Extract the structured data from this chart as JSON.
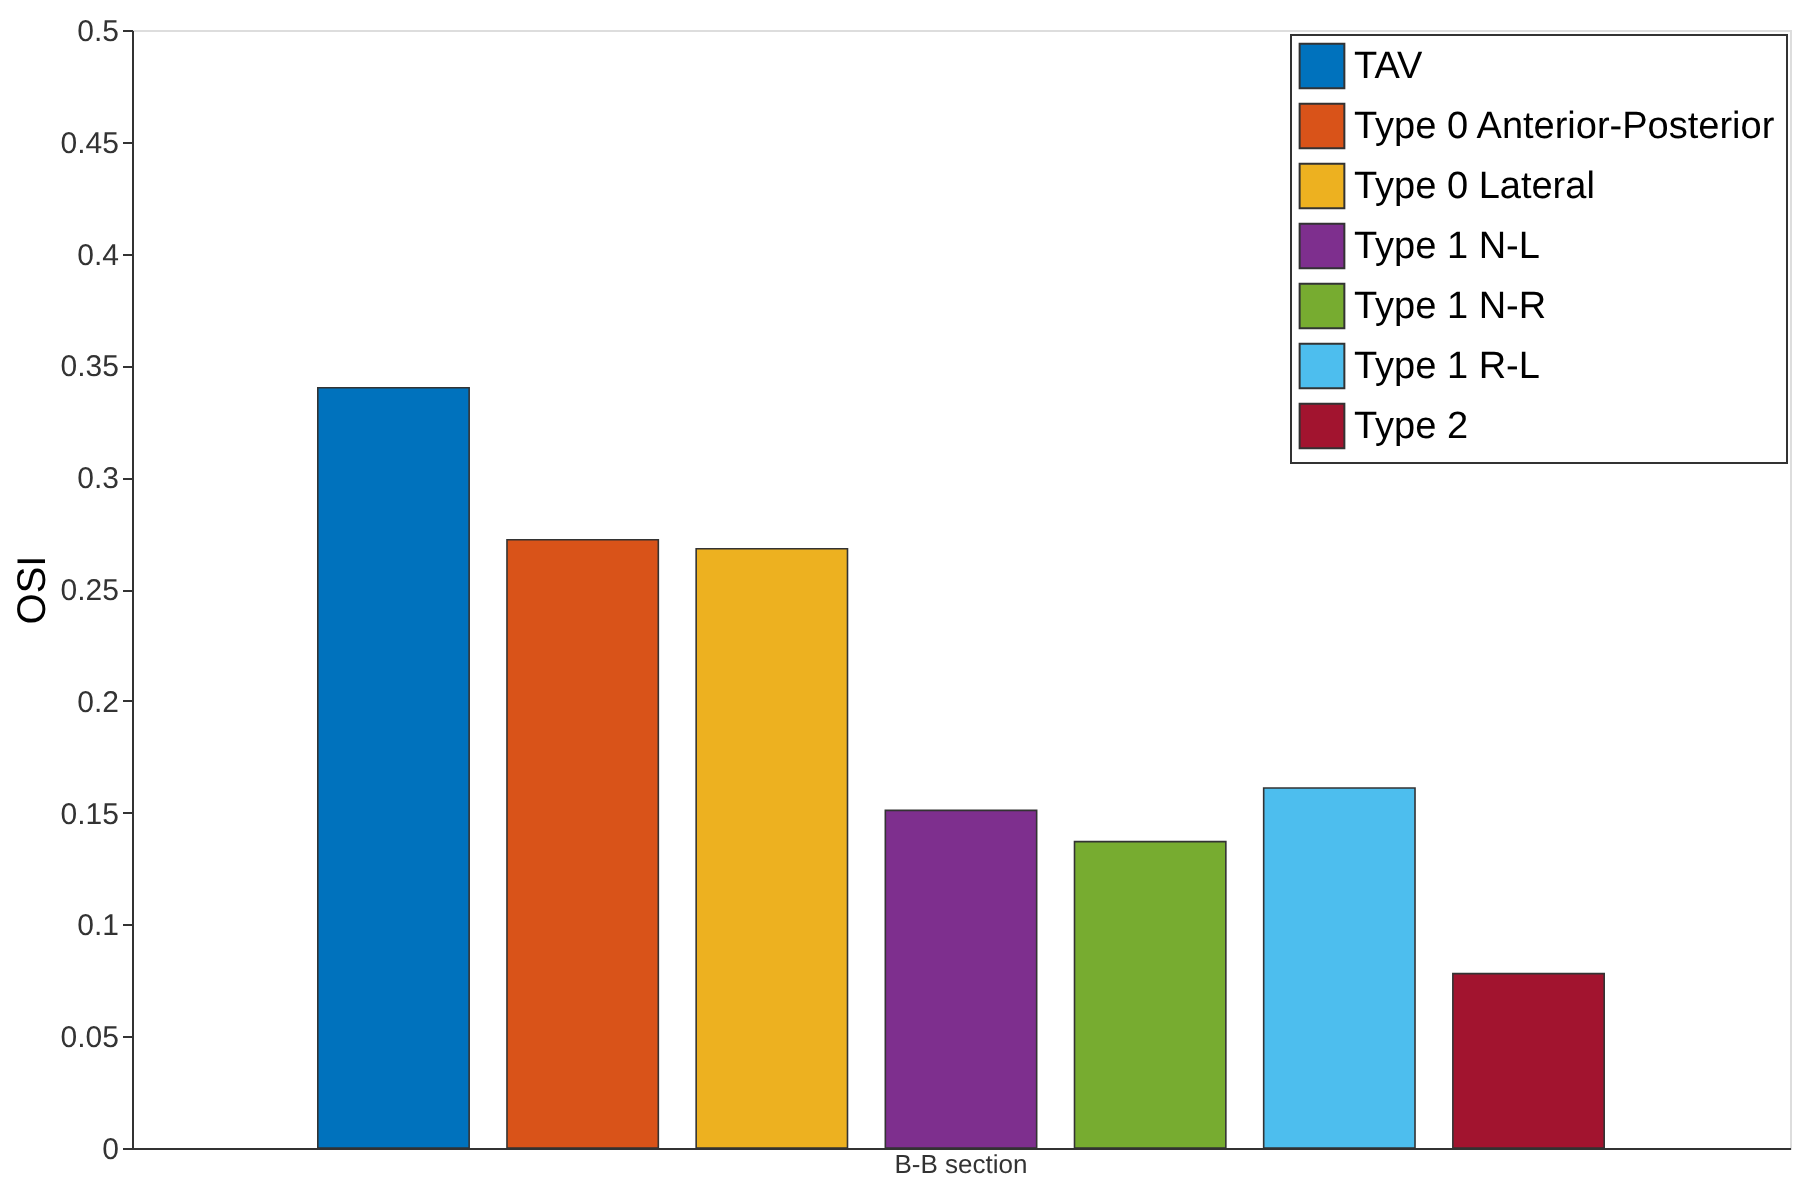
{
  "chart_data": {
    "type": "bar",
    "ylabel": "OSI",
    "categories": [
      "B-B section"
    ],
    "series": [
      {
        "name": "TAV",
        "color": "#0072bd",
        "values": [
          0.34
        ]
      },
      {
        "name": "Type 0 Anterior-Posterior",
        "color": "#d95319",
        "values": [
          0.272
        ]
      },
      {
        "name": "Type 0 Lateral",
        "color": "#edb120",
        "values": [
          0.268
        ]
      },
      {
        "name": "Type 1 N-L",
        "color": "#7e2f8e",
        "values": [
          0.151
        ]
      },
      {
        "name": "Type 1 N-R",
        "color": "#77ac30",
        "values": [
          0.137
        ]
      },
      {
        "name": "Type 1 R-L",
        "color": "#4dbeee",
        "values": [
          0.161
        ]
      },
      {
        "name": "Type 2",
        "color": "#a2142f",
        "values": [
          0.078
        ]
      }
    ],
    "ylim": [
      0,
      0.5
    ],
    "yticks": [
      0,
      0.05,
      0.1,
      0.15,
      0.2,
      0.25,
      0.3,
      0.35,
      0.4,
      0.45,
      0.5
    ],
    "grid": false,
    "legend": "top right"
  }
}
